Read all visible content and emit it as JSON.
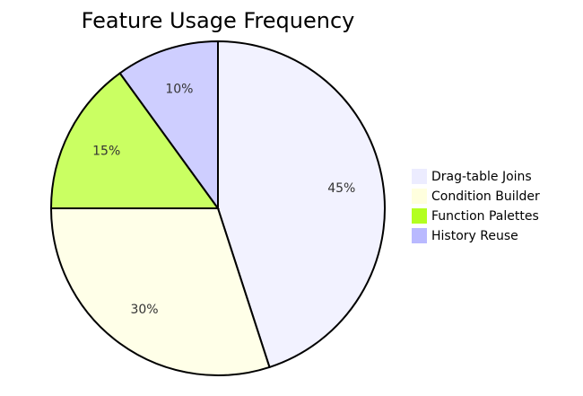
{
  "chart_data": {
    "type": "pie",
    "title": "Feature Usage Frequency",
    "categories": [
      "Drag-table Joins",
      "Condition Builder",
      "Function Palettes",
      "History Reuse"
    ],
    "values": [
      45,
      30,
      15,
      10
    ],
    "value_labels": [
      "45%",
      "30%",
      "15%",
      "10%"
    ],
    "colors": [
      "#ececff",
      "#ffffde",
      "#b3ff20",
      "#b9b9ff"
    ],
    "legend": "right"
  }
}
